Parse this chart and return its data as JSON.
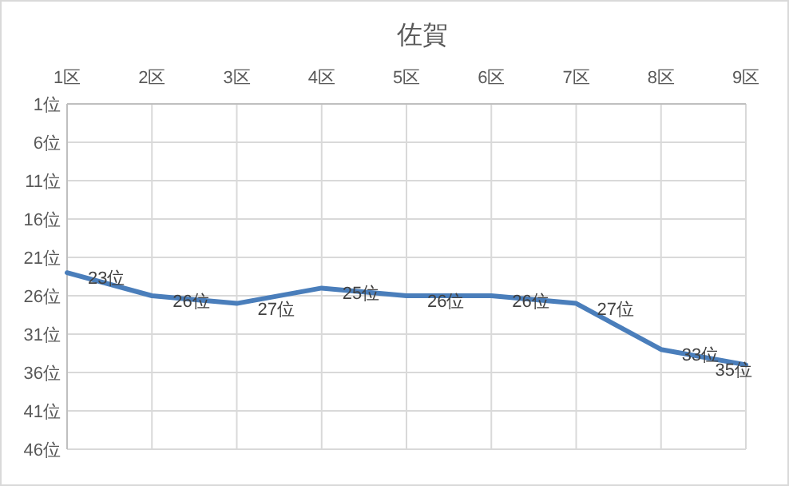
{
  "chart_data": {
    "type": "line",
    "title": "佐賀",
    "categories": [
      "1区",
      "2区",
      "3区",
      "4区",
      "5区",
      "6区",
      "7区",
      "8区",
      "9区"
    ],
    "series": [
      {
        "color": "#4a7ebb",
        "values": [
          23,
          26,
          27,
          25,
          26,
          26,
          27,
          33,
          35
        ],
        "value_labels": [
          "23位",
          "26位",
          "27位",
          "25位",
          "26位",
          "26位",
          "27位",
          "33位",
          "35位"
        ]
      }
    ],
    "ylim": [
      46,
      1
    ],
    "yticks": [
      {
        "value": 1,
        "label": "1位"
      },
      {
        "value": 6,
        "label": "6位"
      },
      {
        "value": 11,
        "label": "11位"
      },
      {
        "value": 16,
        "label": "16位"
      },
      {
        "value": 21,
        "label": "21位"
      },
      {
        "value": 26,
        "label": "26位"
      },
      {
        "value": 31,
        "label": "31位"
      },
      {
        "value": 36,
        "label": "36位"
      },
      {
        "value": 41,
        "label": "41位"
      },
      {
        "value": 46,
        "label": "46位"
      }
    ],
    "grid": true
  }
}
